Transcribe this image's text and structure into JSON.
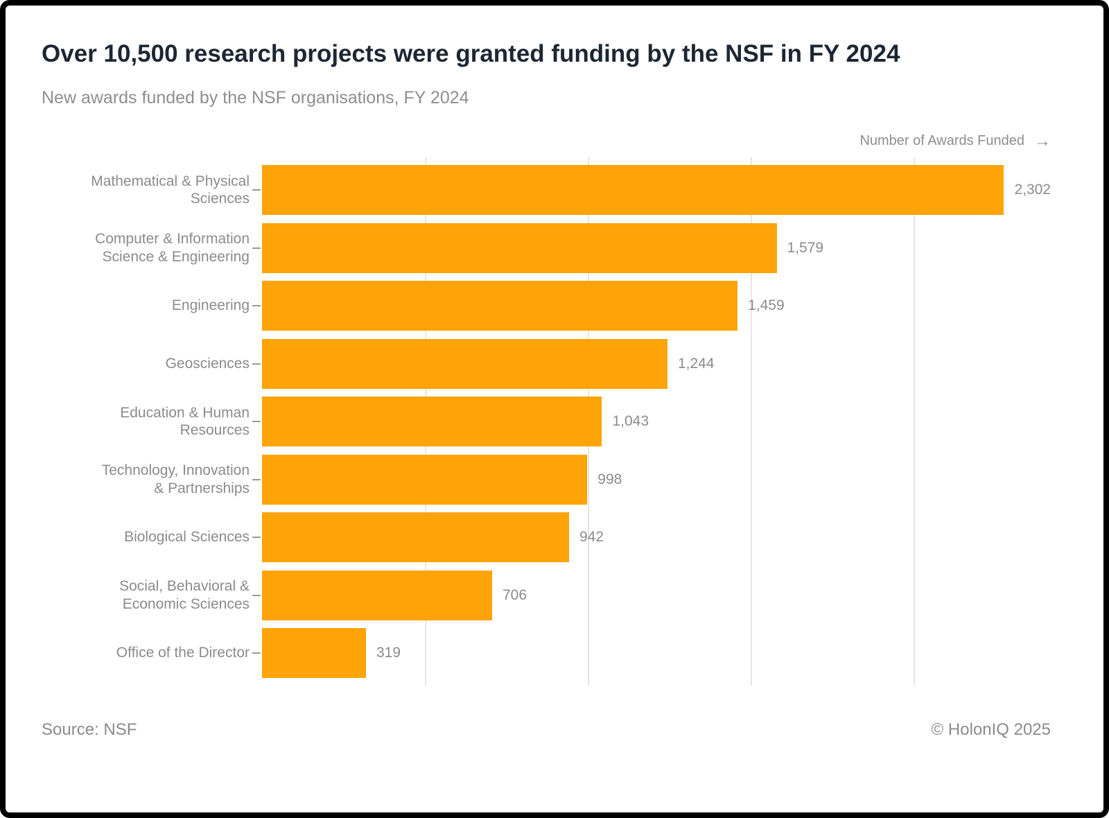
{
  "header": {
    "title": "Over 10,500 research projects were granted funding by the NSF in FY 2024",
    "subtitle": "New awards funded by the NSF organisations, FY 2024"
  },
  "chart_data": {
    "type": "bar",
    "orientation": "horizontal",
    "title": "Over 10,500 research projects were granted funding by the NSF in FY 2024",
    "subtitle": "New awards funded by the NSF organisations, FY 2024",
    "xlabel": "Number of Awards Funded",
    "xlabel_arrow": "→",
    "categories": [
      "Mathematical & Physical Sciences",
      "Computer & Information Science & Engineering",
      "Engineering",
      "Geosciences",
      "Education & Human Resources",
      "Technology, Innovation & Partnerships",
      "Biological Sciences",
      "Social, Behavioral & Economic Sciences",
      "Office of the Director"
    ],
    "category_display": [
      "Mathematical & Physical\nSciences",
      "Computer & Information\nScience & Engineering",
      "Engineering",
      "Geosciences",
      "Education & Human\nResources",
      "Technology, Innovation\n& Partnerships",
      "Biological Sciences",
      "Social, Behavioral &\nEconomic Sciences",
      "Office of the Director"
    ],
    "values": [
      2302,
      1579,
      1459,
      1244,
      1043,
      998,
      942,
      706,
      319
    ],
    "value_labels": [
      "2,302",
      "1,579",
      "1,459",
      "1,244",
      "1,043",
      "998",
      "942",
      "706",
      "319"
    ],
    "xlim": [
      0,
      2420
    ],
    "gridlines": [
      500,
      1000,
      1500,
      2000
    ],
    "grid": true,
    "legend": false,
    "bar_color": "#ffa408",
    "label_color": "#8b8b8b",
    "gridline_color": "#e6e6e6"
  },
  "footer": {
    "source": "Source: NSF",
    "credit": "© HolonIQ 2025"
  }
}
